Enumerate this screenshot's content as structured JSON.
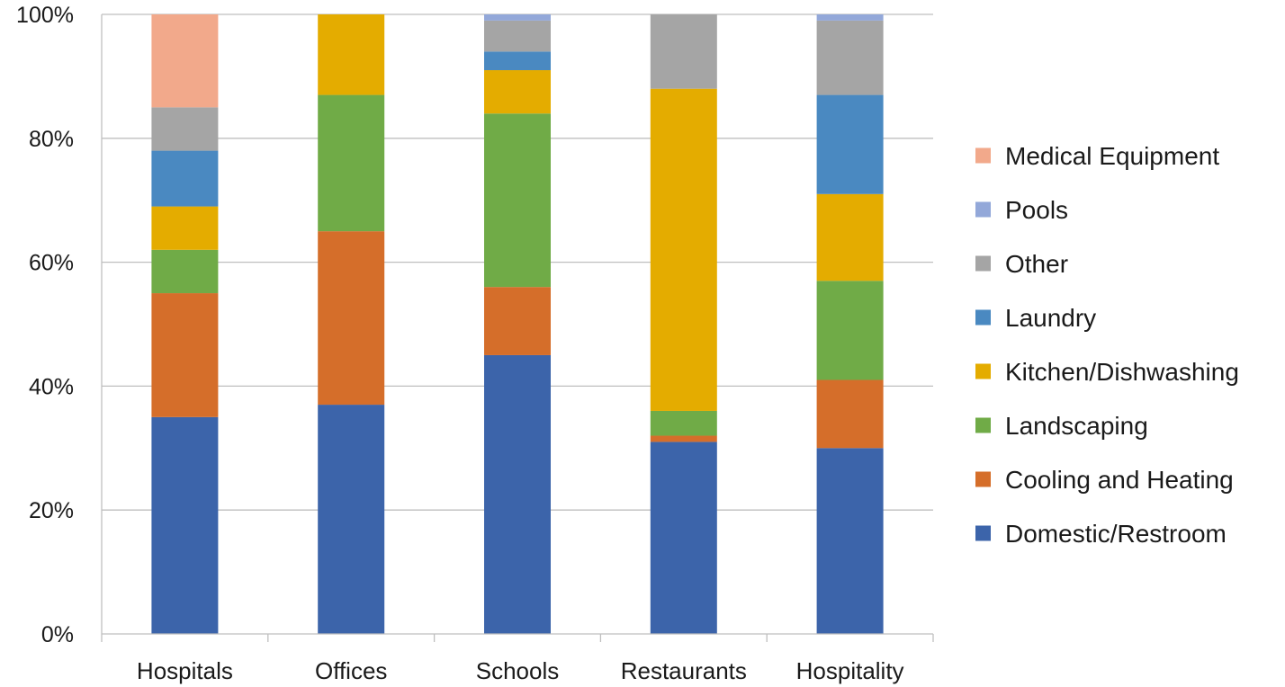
{
  "chart_data": {
    "type": "bar",
    "stacked": "percent",
    "categories": [
      "Hospitals",
      "Offices",
      "Schools",
      "Restaurants",
      "Hospitality"
    ],
    "ylim": [
      0,
      100
    ],
    "yticks": [
      0,
      20,
      40,
      60,
      80,
      100
    ],
    "ytick_labels": [
      "0%",
      "20%",
      "40%",
      "60%",
      "80%",
      "100%"
    ],
    "grid": true,
    "legend_position": "right",
    "series": [
      {
        "name": "Domestic/Restroom",
        "color": "#3c64aa",
        "values": [
          35,
          37,
          45,
          31,
          30
        ]
      },
      {
        "name": "Cooling and Heating",
        "color": "#d56e2a",
        "values": [
          20,
          28,
          11,
          1,
          11
        ]
      },
      {
        "name": "Landscaping",
        "color": "#70ab47",
        "values": [
          7,
          22,
          28,
          4,
          16
        ]
      },
      {
        "name": "Kitchen/Dishwashing",
        "color": "#e4ac00",
        "values": [
          7,
          13,
          7,
          52,
          14
        ]
      },
      {
        "name": "Laundry",
        "color": "#4a89c1",
        "values": [
          9,
          0,
          3,
          0,
          16
        ]
      },
      {
        "name": "Other",
        "color": "#a5a5a5",
        "values": [
          7,
          0,
          5,
          12,
          12
        ]
      },
      {
        "name": "Pools",
        "color": "#93a8d9",
        "values": [
          0,
          0,
          1,
          0,
          1
        ]
      },
      {
        "name": "Medical Equipment",
        "color": "#f2a98b",
        "values": [
          15,
          0,
          0,
          0,
          0
        ]
      }
    ]
  }
}
